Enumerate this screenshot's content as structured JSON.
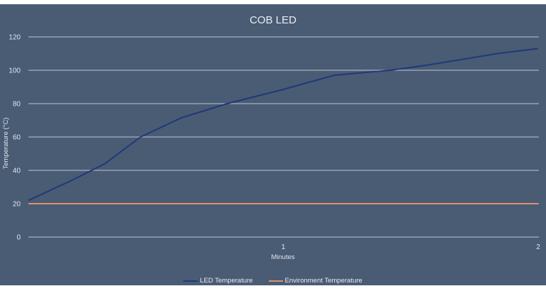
{
  "chart_data": {
    "type": "line",
    "title": "COB LED",
    "xlabel": "Minutes",
    "ylabel": "Temperature (°C)",
    "xlim": [
      0,
      2
    ],
    "ylim": [
      0,
      120
    ],
    "yticks": [
      "0",
      "20",
      "40",
      "60",
      "80",
      "100",
      "120"
    ],
    "xticks": [
      "1",
      "2"
    ],
    "grid": "horizontal",
    "legend_position": "bottom",
    "x": [
      0,
      0.17,
      0.3,
      0.44,
      0.6,
      0.78,
      1.0,
      1.2,
      1.42,
      1.56,
      1.84,
      2.0
    ],
    "series": [
      {
        "name": "LED Temperature",
        "color": "#1f3a78",
        "values": [
          22,
          34,
          44,
          60,
          71.5,
          80,
          88.5,
          97,
          100,
          103,
          110,
          113
        ]
      },
      {
        "name": "Environment Temperature",
        "color": "#e0926a",
        "values": [
          20,
          20,
          20,
          20,
          20,
          20,
          20,
          20,
          20,
          20,
          20,
          20
        ]
      }
    ]
  },
  "legend": {
    "led_label": "LED Temperature",
    "env_label": "Environment Temperature"
  }
}
